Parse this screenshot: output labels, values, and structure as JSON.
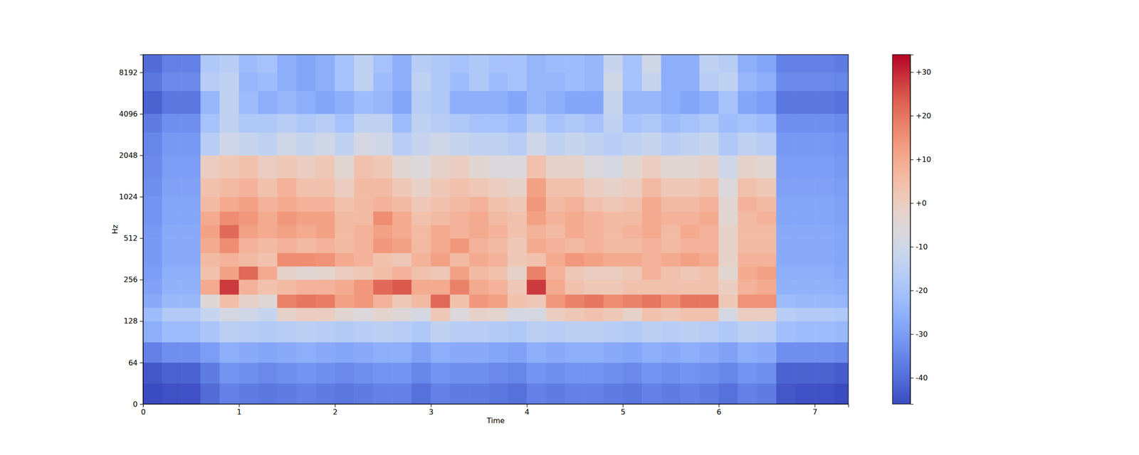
{
  "chart_data": {
    "type": "heatmap",
    "xlabel": "Time",
    "ylabel": "Hz",
    "log": "y",
    "xlim": [
      0,
      7.35
    ],
    "ylim": [
      0,
      11025
    ],
    "xticks": [
      0,
      1,
      2,
      3,
      4,
      5,
      6,
      7
    ],
    "yticks": [
      0,
      64,
      128,
      256,
      512,
      1024,
      2048,
      4096,
      8192
    ],
    "x_bins": [
      0,
      0.2,
      0.4,
      0.6,
      0.8,
      1.0,
      1.2,
      1.4,
      1.6,
      1.8,
      2.0,
      2.2,
      2.4,
      2.6,
      2.8,
      3.0,
      3.2,
      3.4,
      3.6,
      3.8,
      4.0,
      4.2,
      4.4,
      4.6,
      4.8,
      5.0,
      5.2,
      5.4,
      5.6,
      5.8,
      6.0,
      6.2,
      6.4,
      6.6,
      6.8,
      7.0,
      7.2,
      7.4
    ],
    "y_bins": [
      0,
      32,
      64,
      90,
      128,
      160,
      200,
      256,
      320,
      400,
      512,
      640,
      800,
      1024,
      1400,
      2048,
      3000,
      4096,
      6000,
      8192,
      11025
    ],
    "cells": [
      [
        -46,
        -45,
        -45,
        -40,
        -36,
        -37,
        -38,
        -37,
        -36,
        -37,
        -38,
        -37,
        -36,
        -36,
        -39,
        -36,
        -37,
        -37,
        -38,
        -39,
        -36,
        -37,
        -36,
        -36,
        -37,
        -38,
        -36,
        -37,
        -36,
        -37,
        -39,
        -36,
        -37,
        -44,
        -45,
        -45,
        -46
      ],
      [
        -44,
        -42,
        -42,
        -37,
        -32,
        -33,
        -34,
        -33,
        -32,
        -33,
        -34,
        -33,
        -32,
        -32,
        -35,
        -32,
        -33,
        -33,
        -34,
        -35,
        -32,
        -33,
        -32,
        -32,
        -33,
        -34,
        -32,
        -33,
        -32,
        -33,
        -35,
        -32,
        -33,
        -42,
        -42,
        -42,
        -43
      ],
      [
        -36,
        -33,
        -33,
        -30,
        -26,
        -27,
        -28,
        -27,
        -26,
        -27,
        -28,
        -27,
        -26,
        -26,
        -29,
        -26,
        -27,
        -27,
        -28,
        -29,
        -26,
        -27,
        -26,
        -26,
        -27,
        -28,
        -26,
        -27,
        -26,
        -27,
        -29,
        -26,
        -27,
        -33,
        -33,
        -33,
        -34
      ],
      [
        -26,
        -22,
        -22,
        -19,
        -15,
        -16,
        -17,
        -16,
        -15,
        -16,
        -17,
        -16,
        -15,
        -16,
        -18,
        -14,
        -16,
        -16,
        -17,
        -18,
        -15,
        -16,
        -15,
        -15,
        -16,
        -17,
        -15,
        -16,
        -15,
        -16,
        -18,
        -15,
        -16,
        -21,
        -22,
        -22,
        -23
      ],
      [
        -22,
        -17,
        -17,
        -12,
        -8,
        -10,
        -12,
        -2,
        0,
        0,
        -4,
        -6,
        -3,
        -5,
        -8,
        2,
        -6,
        -2,
        -3,
        -8,
        -8,
        0,
        2,
        4,
        2,
        -2,
        4,
        2,
        4,
        4,
        -8,
        0,
        0,
        -16,
        -17,
        -17,
        -18
      ],
      [
        -27,
        -23,
        -23,
        -5,
        5,
        -2,
        -5,
        18,
        20,
        19,
        12,
        14,
        8,
        2,
        6,
        22,
        4,
        14,
        12,
        4,
        2,
        14,
        18,
        20,
        16,
        18,
        20,
        16,
        20,
        20,
        2,
        15,
        15,
        -22,
        -23,
        -23,
        -24
      ],
      [
        -29,
        -25,
        -25,
        10,
        28,
        8,
        4,
        6,
        8,
        8,
        10,
        14,
        22,
        24,
        10,
        10,
        18,
        10,
        8,
        2,
        28,
        10,
        4,
        2,
        2,
        4,
        4,
        4,
        4,
        4,
        0,
        8,
        10,
        -25,
        -25,
        -25,
        -26
      ],
      [
        -30,
        -26,
        -26,
        4,
        12,
        22,
        10,
        -2,
        -4,
        -3,
        0,
        2,
        5,
        8,
        4,
        2,
        12,
        6,
        4,
        -2,
        18,
        8,
        2,
        0,
        0,
        2,
        8,
        4,
        2,
        4,
        -4,
        10,
        12,
        -26,
        -26,
        -26,
        -27
      ],
      [
        -31,
        -27,
        -27,
        6,
        8,
        6,
        4,
        16,
        16,
        15,
        10,
        8,
        4,
        2,
        8,
        12,
        6,
        10,
        8,
        2,
        4,
        10,
        14,
        12,
        10,
        10,
        8,
        10,
        12,
        10,
        -2,
        8,
        8,
        -27,
        -27,
        -27,
        -28
      ],
      [
        -31,
        -27,
        -27,
        10,
        16,
        8,
        6,
        8,
        6,
        8,
        6,
        8,
        14,
        12,
        6,
        10,
        14,
        8,
        6,
        2,
        10,
        8,
        6,
        8,
        6,
        6,
        8,
        6,
        8,
        8,
        -2,
        6,
        6,
        -27,
        -27,
        -27,
        -28
      ],
      [
        -31,
        -27,
        -27,
        12,
        22,
        12,
        10,
        12,
        10,
        12,
        6,
        8,
        12,
        10,
        6,
        10,
        8,
        10,
        8,
        4,
        8,
        6,
        10,
        8,
        6,
        8,
        10,
        6,
        10,
        8,
        -2,
        6,
        6,
        -27,
        -27,
        -27,
        -28
      ],
      [
        -32,
        -28,
        -28,
        10,
        16,
        14,
        10,
        14,
        12,
        12,
        6,
        6,
        16,
        10,
        4,
        6,
        8,
        10,
        6,
        4,
        12,
        8,
        10,
        8,
        6,
        6,
        10,
        8,
        8,
        10,
        -4,
        6,
        8,
        -28,
        -28,
        -28,
        -29
      ],
      [
        -32,
        -28,
        -28,
        6,
        10,
        12,
        8,
        10,
        8,
        8,
        4,
        6,
        8,
        6,
        2,
        4,
        6,
        8,
        4,
        2,
        14,
        6,
        8,
        4,
        2,
        4,
        10,
        6,
        6,
        8,
        -4,
        8,
        6,
        -28,
        -28,
        -28,
        -29
      ],
      [
        -33,
        -29,
        -29,
        4,
        6,
        8,
        4,
        8,
        4,
        4,
        0,
        6,
        6,
        2,
        -2,
        2,
        4,
        2,
        0,
        -2,
        12,
        4,
        4,
        0,
        -2,
        0,
        6,
        2,
        2,
        4,
        -6,
        4,
        2,
        -29,
        -29,
        -29,
        -30
      ],
      [
        -34,
        -30,
        -30,
        0,
        2,
        4,
        0,
        2,
        0,
        2,
        -4,
        4,
        2,
        -4,
        -6,
        -2,
        0,
        -4,
        -6,
        -6,
        4,
        -2,
        -2,
        -6,
        -8,
        -4,
        0,
        -4,
        -4,
        -2,
        -10,
        -2,
        -4,
        -30,
        -30,
        -30,
        -31
      ],
      [
        -35,
        -31,
        -31,
        -16,
        -10,
        -12,
        -14,
        -10,
        -12,
        -10,
        -14,
        -8,
        -10,
        -16,
        -12,
        -10,
        -12,
        -14,
        -14,
        -16,
        -10,
        -14,
        -12,
        -14,
        -16,
        -14,
        -12,
        -16,
        -14,
        -12,
        -18,
        -14,
        -16,
        -31,
        -31,
        -31,
        -32
      ],
      [
        -37,
        -33,
        -33,
        -20,
        -14,
        -18,
        -18,
        -16,
        -18,
        -16,
        -20,
        -14,
        -14,
        -22,
        -14,
        -16,
        -18,
        -20,
        -20,
        -22,
        -16,
        -20,
        -18,
        -20,
        -14,
        -20,
        -18,
        -22,
        -20,
        -18,
        -22,
        -20,
        -22,
        -33,
        -33,
        -33,
        -34
      ],
      [
        -42,
        -38,
        -38,
        -24,
        -14,
        -22,
        -26,
        -24,
        -26,
        -28,
        -26,
        -22,
        -24,
        -28,
        -16,
        -18,
        -26,
        -26,
        -26,
        -28,
        -24,
        -26,
        -28,
        -28,
        -12,
        -24,
        -24,
        -26,
        -28,
        -26,
        -20,
        -28,
        -30,
        -38,
        -38,
        -38,
        -39
      ],
      [
        -38,
        -34,
        -34,
        -16,
        -14,
        -24,
        -22,
        -26,
        -28,
        -26,
        -20,
        -14,
        -22,
        -26,
        -14,
        -18,
        -22,
        -18,
        -22,
        -20,
        -24,
        -24,
        -22,
        -24,
        -10,
        -20,
        -12,
        -26,
        -26,
        -16,
        -14,
        -24,
        -26,
        -34,
        -34,
        -34,
        -35
      ],
      [
        -40,
        -36,
        -36,
        -18,
        -16,
        -22,
        -20,
        -26,
        -28,
        -26,
        -20,
        -14,
        -20,
        -26,
        -16,
        -18,
        -20,
        -18,
        -20,
        -20,
        -24,
        -22,
        -22,
        -24,
        -12,
        -20,
        -10,
        -26,
        -26,
        -14,
        -16,
        -26,
        -28,
        -36,
        -36,
        -36,
        -37
      ]
    ],
    "colorbar_range": [
      -46,
      34
    ],
    "colorbar_ticks": [
      {
        "value": 30,
        "label": "+30"
      },
      {
        "value": 20,
        "label": "+20"
      },
      {
        "value": 10,
        "label": "+10"
      },
      {
        "value": 0,
        "label": "+0"
      },
      -10,
      -20,
      -30,
      -40
    ]
  }
}
